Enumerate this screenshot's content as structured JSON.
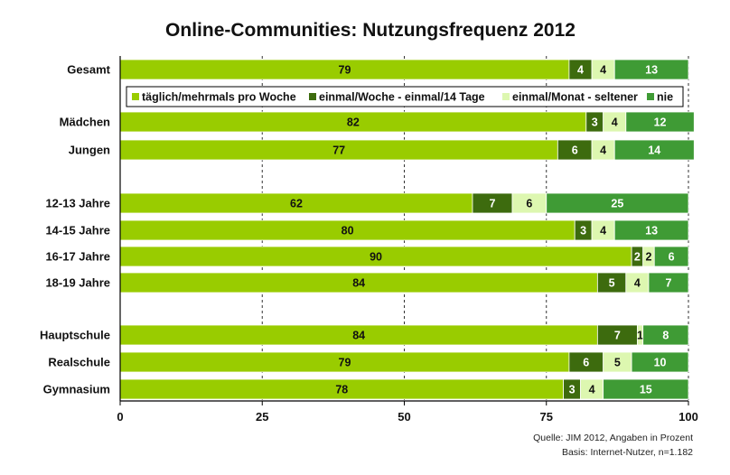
{
  "chart_data": {
    "type": "bar",
    "orientation": "horizontal",
    "stacked": true,
    "title": "Online-Communities: Nutzungsfrequenz 2012",
    "categories": [
      "Gesamt",
      "Mädchen",
      "Jungen",
      "12-13 Jahre",
      "14-15 Jahre",
      "16-17 Jahre",
      "18-19 Jahre",
      "Hauptschule",
      "Realschule",
      "Gymnasium"
    ],
    "series": [
      {
        "name": "täglich/mehrmals pro Woche",
        "color": "#99cc00",
        "label_color": "#111111",
        "values": [
          79,
          82,
          77,
          62,
          80,
          90,
          84,
          84,
          79,
          78
        ]
      },
      {
        "name": "einmal/Woche - einmal/14 Tage",
        "color": "#3d6b0e",
        "label_color": "#ffffff",
        "values": [
          4,
          3,
          6,
          7,
          3,
          2,
          5,
          7,
          6,
          3
        ]
      },
      {
        "name": "einmal/Monat - seltener",
        "color": "#ddf7b0",
        "label_color": "#111111",
        "values": [
          4,
          4,
          4,
          6,
          4,
          2,
          4,
          1,
          5,
          4
        ]
      },
      {
        "name": "nie",
        "color": "#3f9b35",
        "label_color": "#ffffff",
        "values": [
          13,
          12,
          14,
          25,
          13,
          6,
          7,
          8,
          10,
          15
        ]
      }
    ],
    "xlim": [
      0,
      100
    ],
    "xticks": [
      "0",
      "25",
      "50",
      "75",
      "100"
    ],
    "grid": "dashed vertical",
    "legend_position": "below-first-bar",
    "source_lines": [
      "Quelle: JIM 2012, Angaben in Prozent",
      "Basis: Internet-Nutzer, n=1.182"
    ]
  }
}
